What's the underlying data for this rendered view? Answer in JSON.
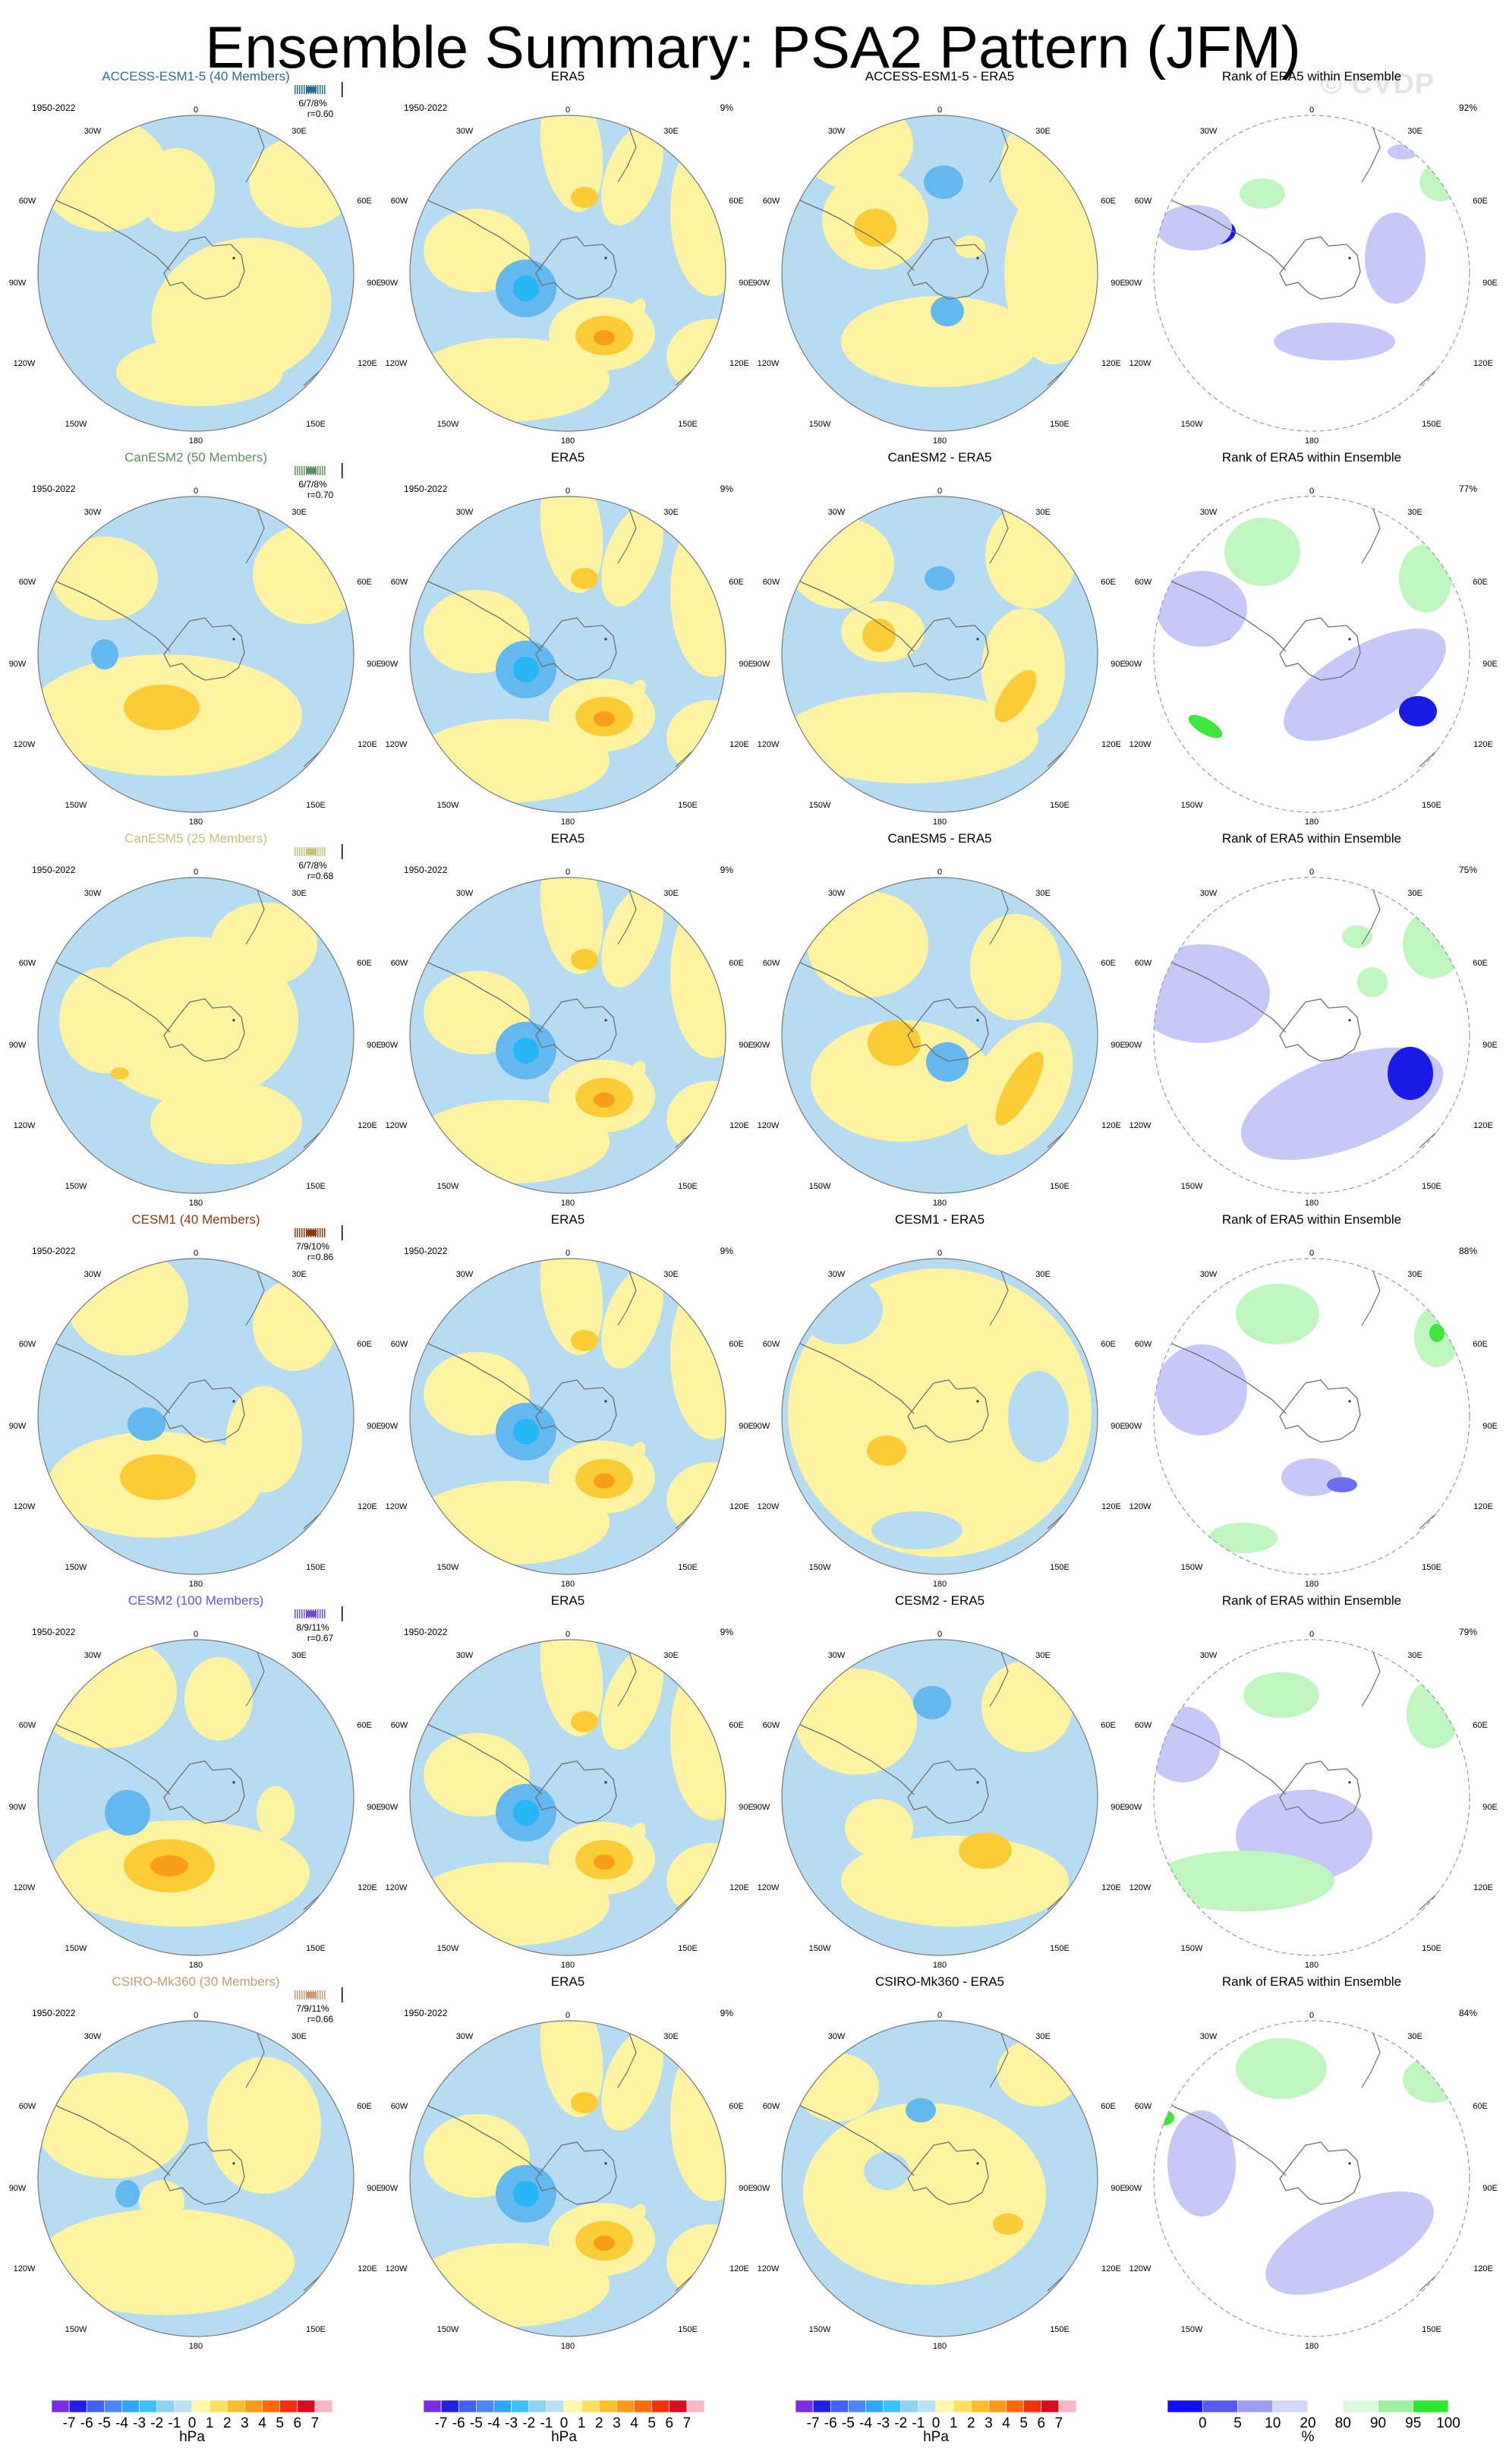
{
  "title": "Ensemble Summary: PSA2 Pattern (JFM)",
  "watermark": "© CVDP",
  "period": "1950-2022",
  "obs_name": "ERA5",
  "rank_title": "Rank of ERA5 within Ensemble",
  "geo_labels": [
    "0",
    "30E",
    "60E",
    "90E",
    "120E",
    "150E",
    "180",
    "150W",
    "120W",
    "90W",
    "60W",
    "30W"
  ],
  "rows": [
    {
      "model_title": "ACCESS-ESM1-5 (40 Members)",
      "color": "#2b6f8f",
      "pct": "6/7/8%",
      "corr": "r=0.60",
      "diff_title": "ACCESS-ESM1-5 - ERA5",
      "obs_pct": "9%",
      "rank_pct": "92%"
    },
    {
      "model_title": "CanESM2 (50 Members)",
      "color": "#5e8e5e",
      "pct": "6/7/8%",
      "corr": "r=0.70",
      "diff_title": "CanESM2 - ERA5",
      "obs_pct": "9%",
      "rank_pct": "77%"
    },
    {
      "model_title": "CanESM5 (25 Members)",
      "color": "#c2c27a",
      "pct": "6/7/8%",
      "corr": "r=0.68",
      "diff_title": "CanESM5 - ERA5",
      "obs_pct": "9%",
      "rank_pct": "75%"
    },
    {
      "model_title": "CESM1 (40 Members)",
      "color": "#8b3a10",
      "pct": "7/9/10%",
      "corr": "r=0.86",
      "diff_title": "CESM1 - ERA5",
      "obs_pct": "9%",
      "rank_pct": "88%"
    },
    {
      "model_title": "CESM2 (100 Members)",
      "color": "#6f4fcf",
      "pct": "8/9/11%",
      "corr": "r=0.67",
      "diff_title": "CESM2 - ERA5",
      "obs_pct": "9%",
      "rank_pct": "79%"
    },
    {
      "model_title": "CSIRO-Mk360 (30 Members)",
      "color": "#c89a72",
      "pct": "7/9/11%",
      "corr": "r=0.66",
      "diff_title": "CSIRO-Mk360 - ERA5",
      "obs_pct": "9%",
      "rank_pct": "84%"
    }
  ],
  "hpa_colorbar": {
    "ticks": [
      "-7",
      "-6",
      "-5",
      "-4",
      "-3",
      "-2",
      "-1",
      "0",
      "1",
      "2",
      "3",
      "4",
      "5",
      "6",
      "7"
    ],
    "unit": "hPa",
    "colors": [
      "#7b2ee0",
      "#2020e0",
      "#4060ee",
      "#4b86f4",
      "#2ea8f4",
      "#3cc2f8",
      "#8ed2f0",
      "#bde0f5",
      "#fff6a6",
      "#ffe060",
      "#ffbe28",
      "#ff9a14",
      "#ff6a0a",
      "#f23010",
      "#d60e20",
      "#f8b8c8"
    ]
  },
  "rank_colorbar": {
    "ticks": [
      "0",
      "5",
      "10",
      "20",
      "80",
      "90",
      "95",
      "100"
    ],
    "unit": "%",
    "colors": [
      "#1010f0",
      "#5a5aee",
      "#9e9ef4",
      "#d6d6fa",
      "#ffffff",
      "#dcf8dc",
      "#9ef09e",
      "#2ee82e"
    ]
  }
}
